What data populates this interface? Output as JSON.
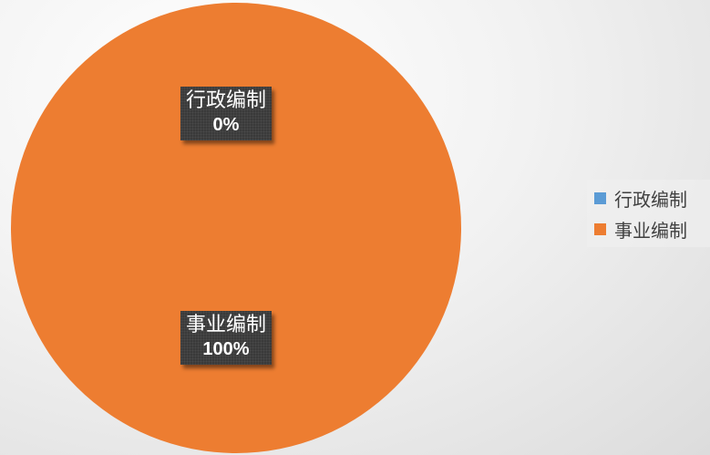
{
  "chart_data": {
    "type": "pie",
    "categories": [
      "行政编制",
      "事业编制"
    ],
    "values": [
      0,
      100
    ],
    "data_labels": [
      {
        "category": "行政编制",
        "percent": "0%"
      },
      {
        "category": "事业编制",
        "percent": "100%"
      }
    ],
    "colors": [
      "#5b9bd5",
      "#ed7d31"
    ],
    "legend": {
      "placement": "right",
      "entries": [
        "行政编制",
        "事业编制"
      ]
    }
  }
}
